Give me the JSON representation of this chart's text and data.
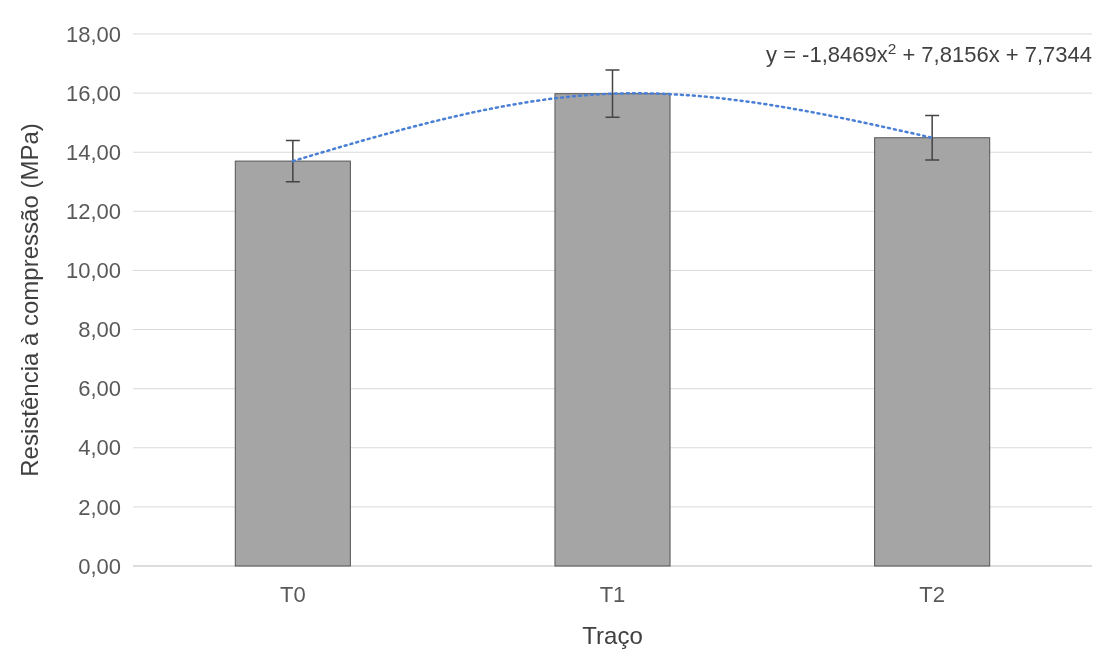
{
  "chart_data": {
    "type": "bar",
    "xlabel": "Traço",
    "ylabel": "Resistência à compressão (MPa)",
    "categories": [
      "T0",
      "T1",
      "T2"
    ],
    "series": [
      {
        "color": "#a5a5a5",
        "values": [
          13.7,
          15.98,
          14.49
        ],
        "errors": [
          0.7,
          0.8,
          0.75
        ]
      },
      {
        "type": "line",
        "color": "#4a7fd6",
        "x": [
          "T0",
          "T1",
          "T2"
        ],
        "values": [
          13.7,
          15.98,
          14.49
        ],
        "line_style": "dotted",
        "marker": "none"
      }
    ],
    "ylim": [
      0,
      18
    ],
    "yticks": [
      {
        "value": 0,
        "label": "0,00"
      },
      {
        "value": 2,
        "label": "2,00"
      },
      {
        "value": 4,
        "label": "4,00"
      },
      {
        "value": 6,
        "label": "6,00"
      },
      {
        "value": 8,
        "label": "8,00"
      },
      {
        "value": 10,
        "label": "10,00"
      },
      {
        "value": 12,
        "label": "12,00"
      },
      {
        "value": 14,
        "label": "14,00"
      },
      {
        "value": 16,
        "label": "16,00"
      },
      {
        "value": 18,
        "label": "18,00"
      }
    ],
    "grid": "y",
    "annotations": [
      "y = -1,8469x$^{2}$ + 7,8156x + 7,7344"
    ]
  }
}
